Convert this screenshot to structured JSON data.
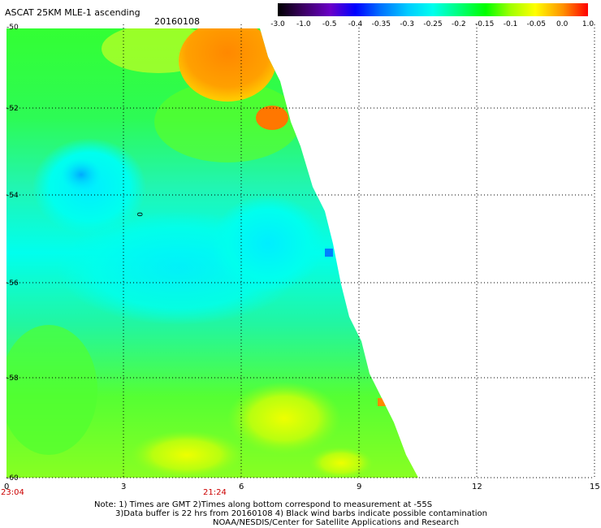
{
  "header": {
    "title": "ASCAT 25KM MLE-1 ascending",
    "date": "20160108"
  },
  "colorbar": {
    "labels": [
      "-3.0",
      "-1.0",
      "-0.5",
      "-0.4",
      "-0.35",
      "-0.3",
      "-0.25",
      "-0.2",
      "-0.15",
      "-0.1",
      "-0.05",
      "0.0",
      "1.0"
    ]
  },
  "map": {
    "lat_labels": [
      "-50",
      "-52",
      "-54",
      "-56",
      "-58",
      "-60"
    ],
    "lon_labels": [
      "0",
      "3",
      "6",
      "9",
      "12",
      "15"
    ],
    "time_labels": [
      "23:04",
      "21:24"
    ],
    "contour_label": "0"
  },
  "notes": {
    "line1": "Note: 1) Times are GMT 2)Times along bottom correspond to measurement at -55S",
    "line2": "3)Data buffer is 22 hrs from 20160108 4) Black wind barbs indicate possible contamination",
    "line3": "NOAA/NESDIS/Center for Satellite Applications and Research"
  }
}
